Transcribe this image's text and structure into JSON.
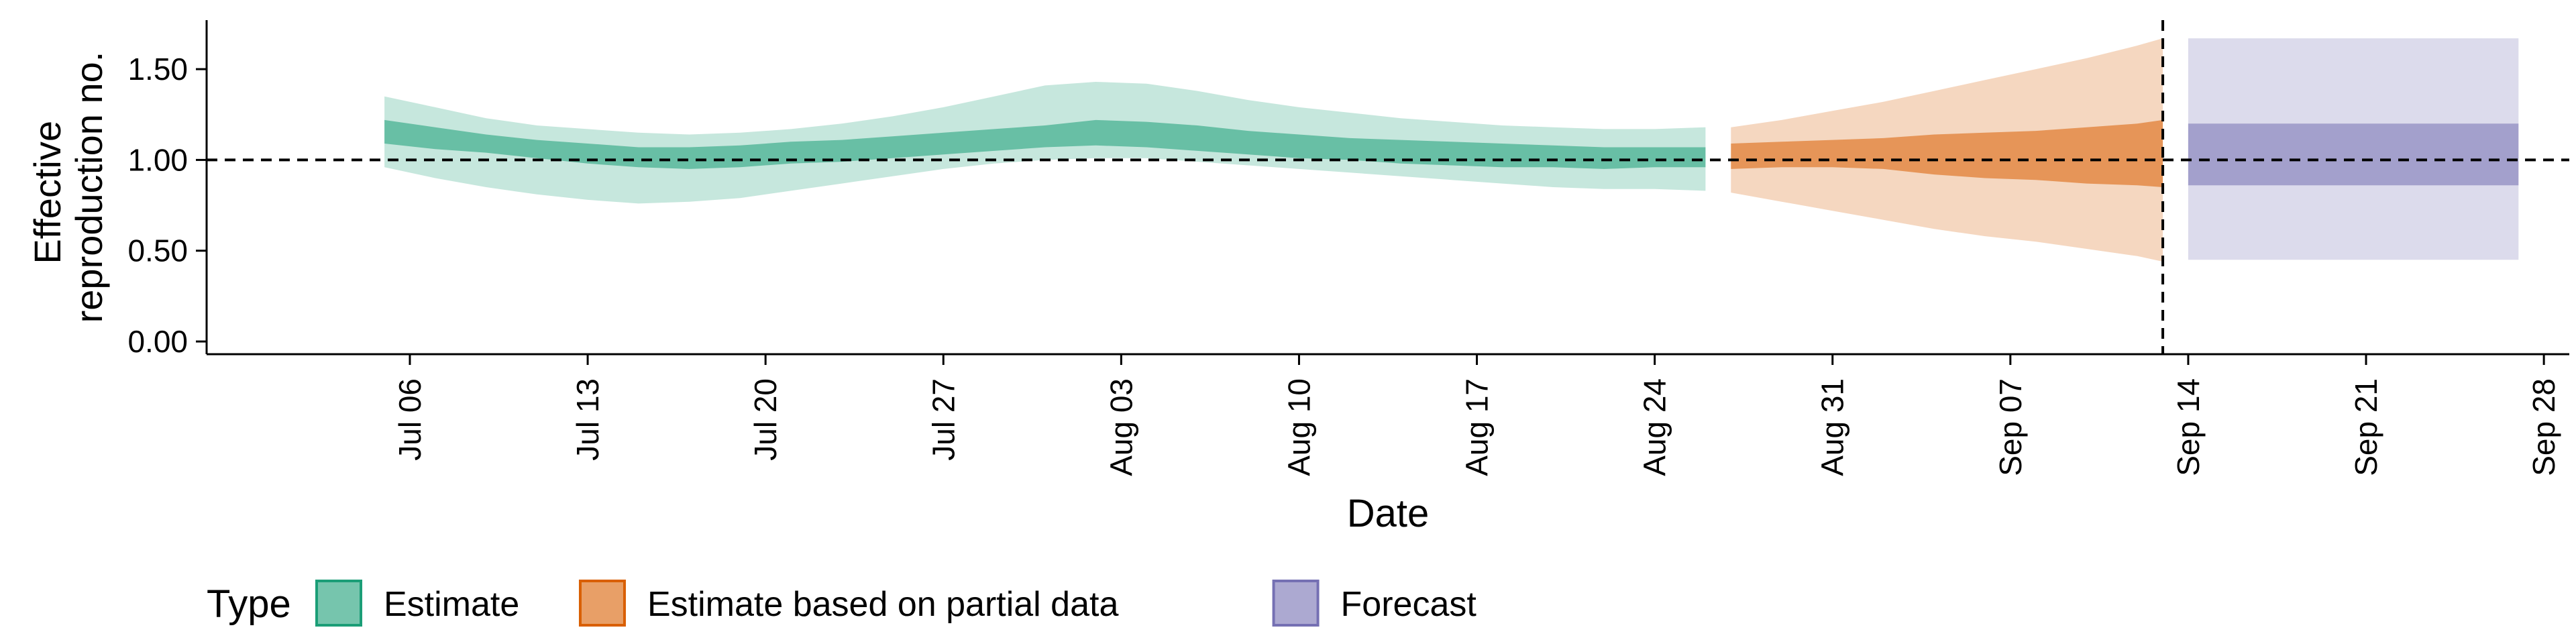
{
  "chart_data": {
    "type": "area",
    "xlabel": "Date",
    "ylabel": "Effective reproduction no.",
    "ylabel_lines": [
      "Effective",
      "reproduction no."
    ],
    "yticks": [
      0.0,
      0.5,
      1.0,
      1.5
    ],
    "ytick_labels": [
      "0.00",
      "0.50",
      "1.00",
      "1.50"
    ],
    "ylim": [
      -0.07,
      1.77
    ],
    "xlim": [
      "2020-06-28",
      "2020-09-29"
    ],
    "xtick_dates": [
      "2020-07-06",
      "2020-07-13",
      "2020-07-20",
      "2020-07-27",
      "2020-08-03",
      "2020-08-10",
      "2020-08-17",
      "2020-08-24",
      "2020-08-31",
      "2020-09-07",
      "2020-09-14",
      "2020-09-21",
      "2020-09-28"
    ],
    "xtick_labels": [
      "Jul 06",
      "Jul 13",
      "Jul 20",
      "Jul 27",
      "Aug 03",
      "Aug 10",
      "Aug 17",
      "Aug 24",
      "Aug 31",
      "Sep 07",
      "Sep 14",
      "Sep 21",
      "Sep 28"
    ],
    "reference_line_y": 1.0,
    "vertical_line_date": "2020-09-13",
    "legend": {
      "title": "Type",
      "position": "bottom",
      "items": [
        "Estimate",
        "Estimate based on partial data",
        "Forecast"
      ]
    },
    "colors": {
      "Estimate": "#1b9e77",
      "Estimate based on partial data": "#d95f02",
      "Forecast": "#7570b3"
    },
    "series": [
      {
        "name": "Estimate",
        "x": [
          "2020-07-05",
          "2020-07-07",
          "2020-07-09",
          "2020-07-11",
          "2020-07-13",
          "2020-07-15",
          "2020-07-17",
          "2020-07-19",
          "2020-07-21",
          "2020-07-23",
          "2020-07-25",
          "2020-07-27",
          "2020-07-29",
          "2020-07-31",
          "2020-08-02",
          "2020-08-04",
          "2020-08-06",
          "2020-08-08",
          "2020-08-10",
          "2020-08-12",
          "2020-08-14",
          "2020-08-16",
          "2020-08-18",
          "2020-08-20",
          "2020-08-22",
          "2020-08-24",
          "2020-08-26"
        ],
        "lower90": [
          0.96,
          0.9,
          0.85,
          0.81,
          0.78,
          0.76,
          0.77,
          0.79,
          0.83,
          0.87,
          0.91,
          0.95,
          0.98,
          1.0,
          1.01,
          1.01,
          0.99,
          0.97,
          0.95,
          0.93,
          0.91,
          0.89,
          0.87,
          0.85,
          0.84,
          0.84,
          0.83
        ],
        "lower50": [
          1.09,
          1.06,
          1.04,
          1.01,
          0.98,
          0.96,
          0.95,
          0.96,
          0.98,
          0.99,
          1.01,
          1.03,
          1.05,
          1.07,
          1.08,
          1.07,
          1.05,
          1.03,
          1.01,
          1.0,
          0.98,
          0.97,
          0.96,
          0.96,
          0.95,
          0.96,
          0.96
        ],
        "upper50": [
          1.22,
          1.18,
          1.14,
          1.11,
          1.09,
          1.07,
          1.07,
          1.08,
          1.1,
          1.11,
          1.13,
          1.15,
          1.17,
          1.19,
          1.22,
          1.21,
          1.19,
          1.16,
          1.14,
          1.12,
          1.11,
          1.1,
          1.09,
          1.08,
          1.07,
          1.07,
          1.07
        ],
        "upper90": [
          1.35,
          1.29,
          1.23,
          1.19,
          1.17,
          1.15,
          1.14,
          1.15,
          1.17,
          1.2,
          1.24,
          1.29,
          1.35,
          1.41,
          1.43,
          1.42,
          1.38,
          1.33,
          1.29,
          1.26,
          1.23,
          1.21,
          1.19,
          1.18,
          1.17,
          1.17,
          1.18
        ]
      },
      {
        "name": "Estimate based on partial data",
        "x": [
          "2020-08-27",
          "2020-08-29",
          "2020-08-31",
          "2020-09-02",
          "2020-09-04",
          "2020-09-06",
          "2020-09-08",
          "2020-09-10",
          "2020-09-12",
          "2020-09-13"
        ],
        "lower90": [
          0.82,
          0.77,
          0.72,
          0.67,
          0.62,
          0.58,
          0.55,
          0.51,
          0.47,
          0.44
        ],
        "lower50": [
          0.95,
          0.96,
          0.96,
          0.95,
          0.92,
          0.9,
          0.89,
          0.87,
          0.86,
          0.85
        ],
        "upper50": [
          1.09,
          1.1,
          1.11,
          1.12,
          1.14,
          1.15,
          1.16,
          1.18,
          1.2,
          1.22
        ],
        "upper90": [
          1.18,
          1.22,
          1.27,
          1.32,
          1.38,
          1.44,
          1.5,
          1.56,
          1.63,
          1.67
        ]
      },
      {
        "name": "Forecast",
        "x": [
          "2020-09-14",
          "2020-09-27"
        ],
        "lower90": [
          0.45,
          0.45
        ],
        "lower50": [
          0.86,
          0.86
        ],
        "upper50": [
          1.2,
          1.2
        ],
        "upper90": [
          1.67,
          1.67
        ]
      }
    ]
  }
}
